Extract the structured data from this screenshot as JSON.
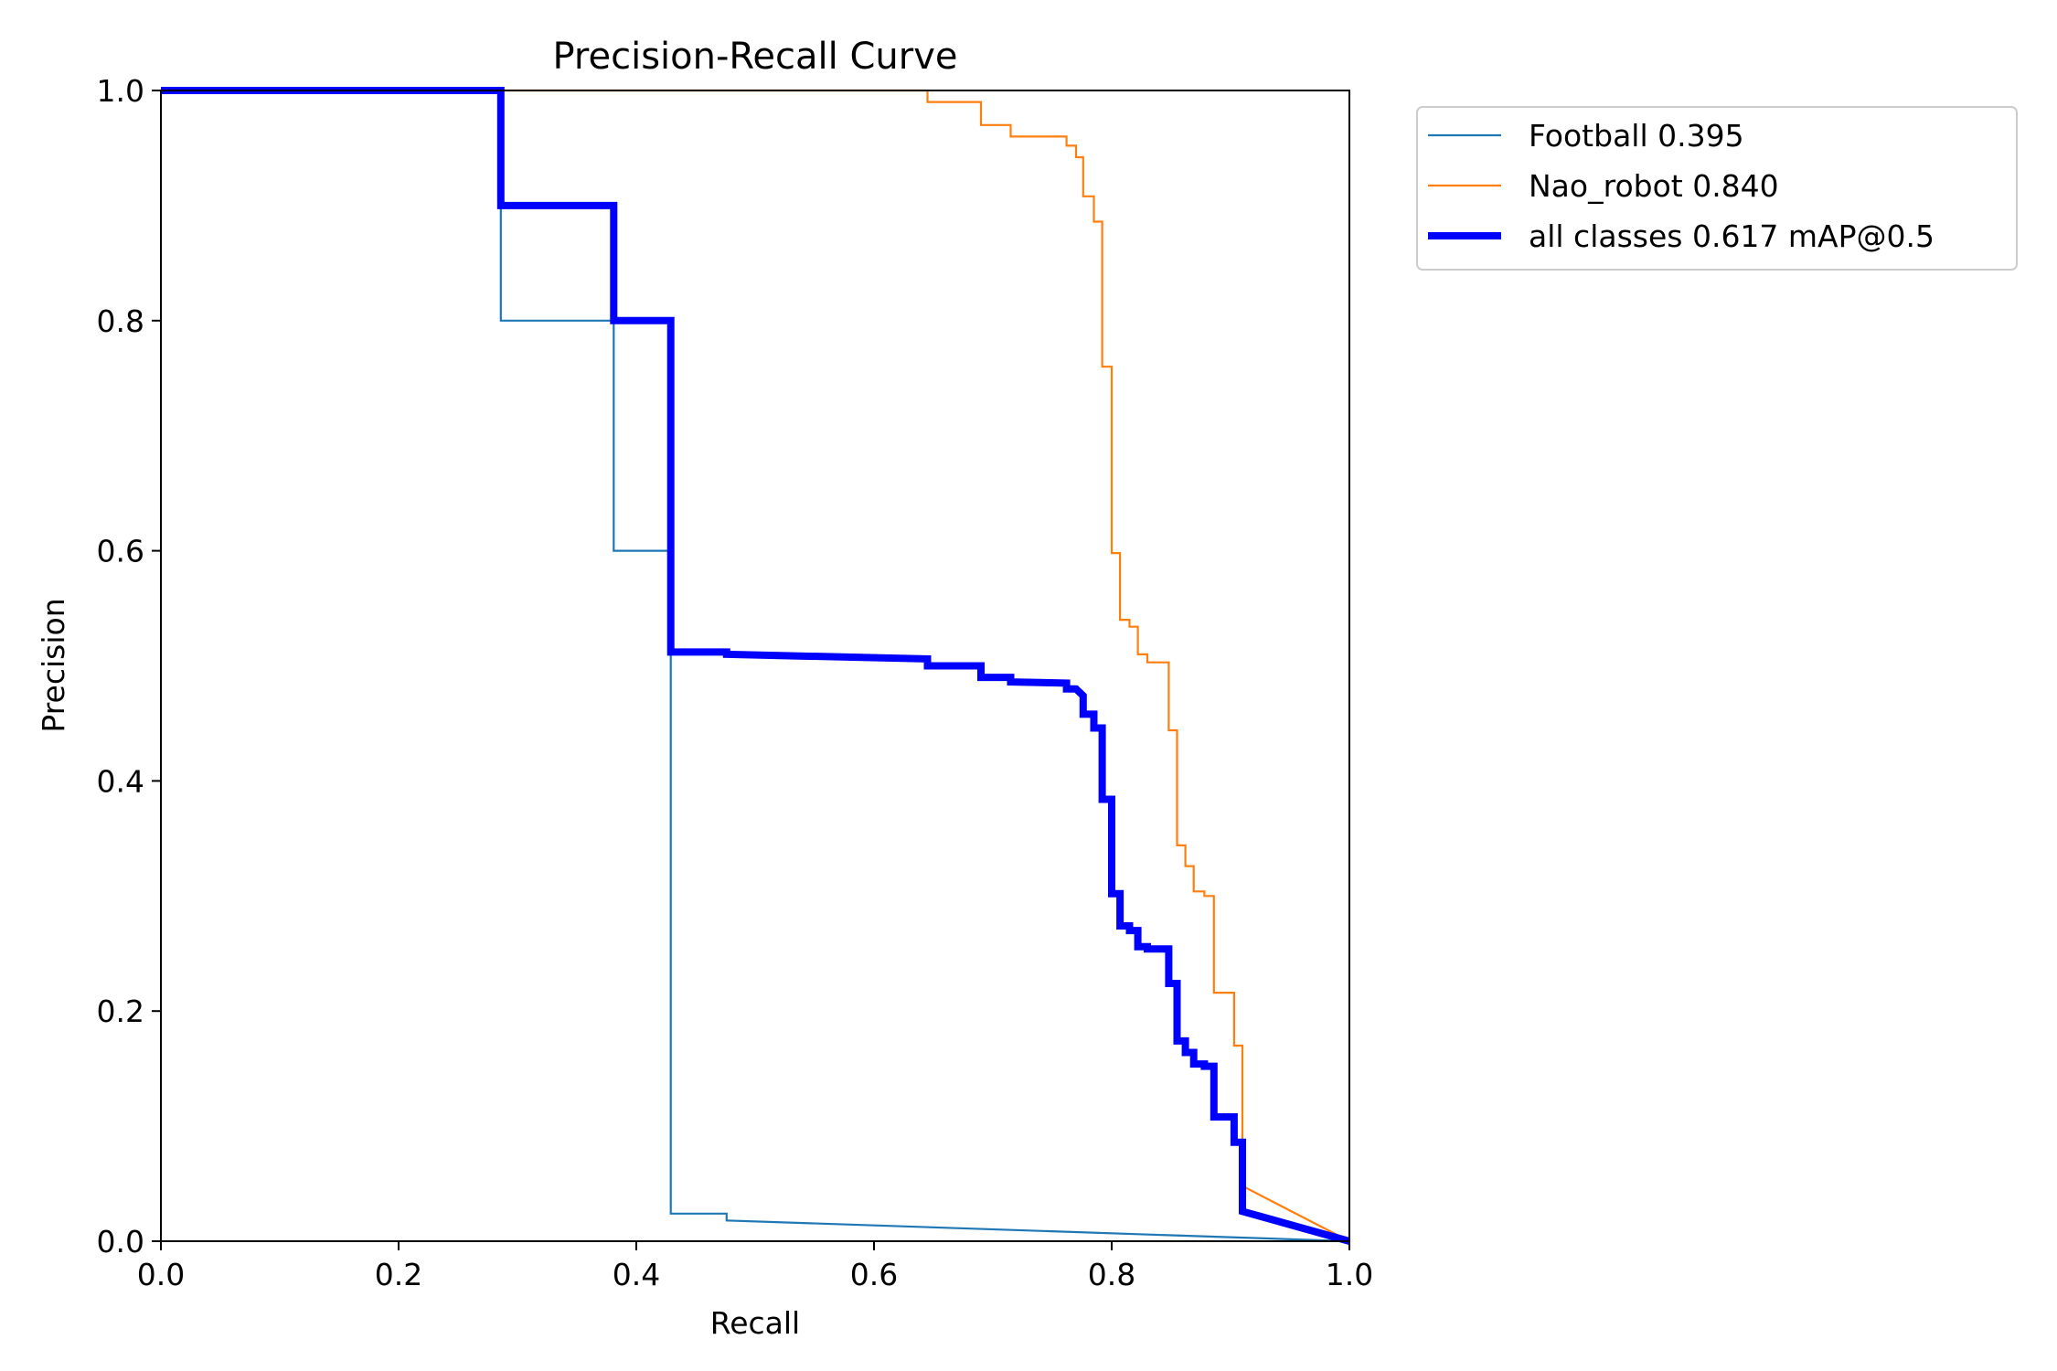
{
  "chart_data": {
    "type": "line",
    "title": "Precision-Recall Curve",
    "xlabel": "Recall",
    "ylabel": "Precision",
    "xlim": [
      0,
      1
    ],
    "ylim": [
      0,
      1
    ],
    "x_ticks": [
      "0.0",
      "0.2",
      "0.4",
      "0.6",
      "0.8",
      "1.0"
    ],
    "y_ticks": [
      "0.0",
      "0.2",
      "0.4",
      "0.6",
      "0.8",
      "1.0"
    ],
    "x_tick_values": [
      0,
      0.2,
      0.4,
      0.6,
      0.8,
      1.0
    ],
    "y_tick_values": [
      0,
      0.2,
      0.4,
      0.6,
      0.8,
      1.0
    ],
    "grid": false,
    "legend_position": "outside-top-right",
    "series": [
      {
        "name": "Football 0.395",
        "color": "#1f77b4",
        "points": [
          [
            0,
            1.0
          ],
          [
            0.286,
            1.0
          ],
          [
            0.286,
            0.8
          ],
          [
            0.381,
            0.8
          ],
          [
            0.381,
            0.6
          ],
          [
            0.429,
            0.6
          ],
          [
            0.429,
            0.024
          ],
          [
            0.476,
            0.024
          ],
          [
            0.476,
            0.018
          ],
          [
            1.0,
            0.0
          ]
        ]
      },
      {
        "name": "Nao_robot 0.840",
        "color": "#ff7f0e",
        "points": [
          [
            0,
            1.0
          ],
          [
            0.645,
            1.0
          ],
          [
            0.645,
            0.99
          ],
          [
            0.69,
            0.99
          ],
          [
            0.69,
            0.97
          ],
          [
            0.715,
            0.97
          ],
          [
            0.715,
            0.96
          ],
          [
            0.762,
            0.96
          ],
          [
            0.762,
            0.952
          ],
          [
            0.77,
            0.952
          ],
          [
            0.77,
            0.942
          ],
          [
            0.776,
            0.942
          ],
          [
            0.776,
            0.908
          ],
          [
            0.785,
            0.908
          ],
          [
            0.785,
            0.886
          ],
          [
            0.792,
            0.886
          ],
          [
            0.792,
            0.76
          ],
          [
            0.8,
            0.76
          ],
          [
            0.8,
            0.598
          ],
          [
            0.807,
            0.598
          ],
          [
            0.807,
            0.54
          ],
          [
            0.815,
            0.54
          ],
          [
            0.815,
            0.534
          ],
          [
            0.822,
            0.534
          ],
          [
            0.822,
            0.51
          ],
          [
            0.83,
            0.51
          ],
          [
            0.83,
            0.503
          ],
          [
            0.848,
            0.503
          ],
          [
            0.848,
            0.444
          ],
          [
            0.855,
            0.444
          ],
          [
            0.855,
            0.344
          ],
          [
            0.862,
            0.344
          ],
          [
            0.862,
            0.326
          ],
          [
            0.869,
            0.326
          ],
          [
            0.869,
            0.304
          ],
          [
            0.878,
            0.304
          ],
          [
            0.878,
            0.3
          ],
          [
            0.886,
            0.3
          ],
          [
            0.886,
            0.216
          ],
          [
            0.903,
            0.216
          ],
          [
            0.903,
            0.17
          ],
          [
            0.91,
            0.17
          ],
          [
            0.91,
            0.048
          ],
          [
            1.0,
            0.0
          ]
        ]
      },
      {
        "name": "all classes 0.617 mAP@0.5",
        "color": "#0000ff",
        "bold": true,
        "points": [
          [
            0,
            1.0
          ],
          [
            0.286,
            1.0
          ],
          [
            0.286,
            0.9
          ],
          [
            0.381,
            0.9
          ],
          [
            0.381,
            0.8
          ],
          [
            0.429,
            0.8
          ],
          [
            0.429,
            0.512
          ],
          [
            0.476,
            0.512
          ],
          [
            0.476,
            0.51
          ],
          [
            0.645,
            0.506
          ],
          [
            0.645,
            0.5
          ],
          [
            0.69,
            0.5
          ],
          [
            0.69,
            0.49
          ],
          [
            0.715,
            0.49
          ],
          [
            0.715,
            0.486
          ],
          [
            0.762,
            0.485
          ],
          [
            0.762,
            0.48
          ],
          [
            0.77,
            0.48
          ],
          [
            0.776,
            0.474
          ],
          [
            0.776,
            0.458
          ],
          [
            0.785,
            0.458
          ],
          [
            0.785,
            0.446
          ],
          [
            0.792,
            0.446
          ],
          [
            0.792,
            0.384
          ],
          [
            0.8,
            0.384
          ],
          [
            0.8,
            0.302
          ],
          [
            0.807,
            0.302
          ],
          [
            0.807,
            0.274
          ],
          [
            0.815,
            0.274
          ],
          [
            0.815,
            0.27
          ],
          [
            0.822,
            0.27
          ],
          [
            0.822,
            0.256
          ],
          [
            0.83,
            0.256
          ],
          [
            0.83,
            0.254
          ],
          [
            0.848,
            0.254
          ],
          [
            0.848,
            0.224
          ],
          [
            0.855,
            0.224
          ],
          [
            0.855,
            0.174
          ],
          [
            0.862,
            0.174
          ],
          [
            0.862,
            0.164
          ],
          [
            0.869,
            0.164
          ],
          [
            0.869,
            0.154
          ],
          [
            0.878,
            0.154
          ],
          [
            0.878,
            0.152
          ],
          [
            0.886,
            0.152
          ],
          [
            0.886,
            0.108
          ],
          [
            0.903,
            0.108
          ],
          [
            0.903,
            0.086
          ],
          [
            0.91,
            0.086
          ],
          [
            0.91,
            0.026
          ],
          [
            1.0,
            0.0
          ]
        ]
      }
    ]
  }
}
